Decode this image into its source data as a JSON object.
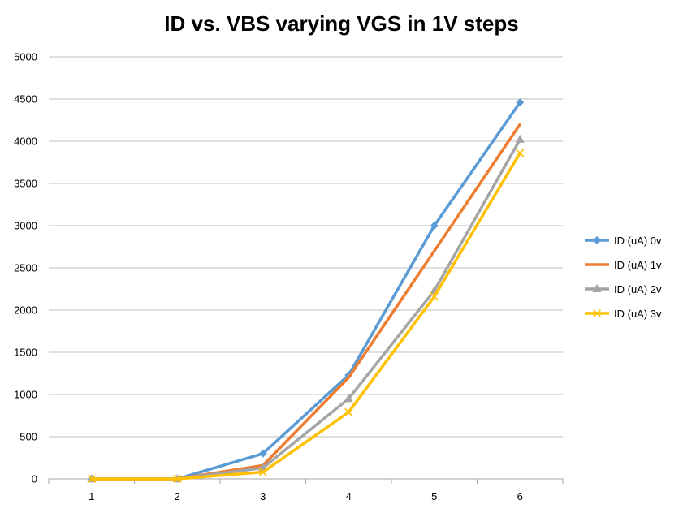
{
  "chart_data": {
    "type": "line",
    "title": "ID vs. VBS varying VGS in 1V steps",
    "xlabel": "",
    "ylabel": "",
    "categories": [
      "1",
      "2",
      "3",
      "4",
      "5",
      "6"
    ],
    "ylim": [
      0,
      5000
    ],
    "yticks": [
      0,
      500,
      1000,
      1500,
      2000,
      2500,
      3000,
      3500,
      4000,
      4500,
      5000
    ],
    "grid": true,
    "legend_position": "right",
    "series": [
      {
        "name": "ID (uA) 0v",
        "color": "#5B9BD5",
        "marker": "diamond",
        "values": [
          0,
          0,
          300,
          1230,
          3000,
          4460
        ]
      },
      {
        "name": "ID (uA) 1v",
        "color": "#ED7D31",
        "marker": "none",
        "values": [
          0,
          0,
          160,
          1200,
          2700,
          4200
        ]
      },
      {
        "name": "ID (uA) 2v",
        "color": "#A5A5A5",
        "marker": "triangle",
        "values": [
          0,
          0,
          130,
          950,
          2230,
          4020
        ]
      },
      {
        "name": "ID (uA) 3v",
        "color": "#FFC000",
        "marker": "x",
        "values": [
          0,
          0,
          80,
          790,
          2160,
          3860
        ]
      }
    ]
  }
}
